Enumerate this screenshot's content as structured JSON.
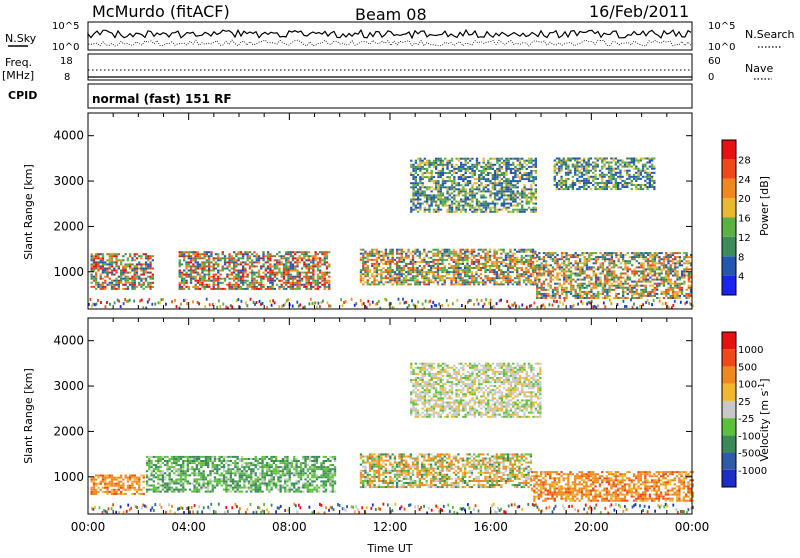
{
  "header": {
    "station": "McMurdo (fitACF)",
    "beam": "Beam 08",
    "date": "16/Feb/2011"
  },
  "strip": {
    "nsky_label": "N.Sky",
    "nsky_ticks": [
      "10^5",
      "10^0"
    ],
    "nsearch_label": "N.Search",
    "nsearch_ticks": [
      "10^5",
      "10^0"
    ],
    "freq_label": "Freq.",
    "freq_unit": "[MHz]",
    "freq_ticks": [
      "18",
      "8"
    ],
    "nave_label": "Nave",
    "nave_ticks": [
      "60",
      "0"
    ],
    "cpid_label": "CPID",
    "cpid_text": "normal (fast) 151 RF"
  },
  "chart_data": [
    {
      "type": "heatmap",
      "title": "",
      "ylabel": "Slant Range [km]",
      "xlabel": "",
      "ylim": [
        180,
        4500
      ],
      "yticks": [
        1000,
        2000,
        3000,
        4000
      ],
      "xlim": [
        0,
        24
      ],
      "colorbar": {
        "label": "Power [dB]",
        "ticks": [
          "28",
          "24",
          "20",
          "16",
          "12",
          "8",
          "4"
        ],
        "colors": [
          "#1a24f0",
          "#2456b0",
          "#3d8b5a",
          "#5ab040",
          "#e8b830",
          "#f08820",
          "#f04818",
          "#e81010"
        ]
      },
      "regions": [
        {
          "t0": 0.1,
          "t1": 2.6,
          "r0": 600,
          "r1": 1400,
          "level": "high"
        },
        {
          "t0": 3.6,
          "t1": 9.6,
          "r0": 600,
          "r1": 1450,
          "level": "high"
        },
        {
          "t0": 10.8,
          "t1": 17.8,
          "r0": 700,
          "r1": 1500,
          "level": "mid"
        },
        {
          "t0": 17.8,
          "t1": 24,
          "r0": 400,
          "r1": 1400,
          "level": "mid"
        },
        {
          "t0": 12.8,
          "t1": 17.8,
          "r0": 2300,
          "r1": 3500,
          "level": "low"
        },
        {
          "t0": 18.5,
          "t1": 22.5,
          "r0": 2800,
          "r1": 3500,
          "level": "low"
        }
      ]
    },
    {
      "type": "heatmap",
      "title": "",
      "ylabel": "Slant Range [km]",
      "xlabel": "Time UT",
      "ylim": [
        180,
        4500
      ],
      "yticks": [
        1000,
        2000,
        3000,
        4000
      ],
      "xlim": [
        0,
        24
      ],
      "xticks": [
        "00:00",
        "04:00",
        "08:00",
        "12:00",
        "16:00",
        "20:00",
        "00:00"
      ],
      "colorbar": {
        "label": "Velocity [m s",
        "label_sup": "-1",
        "label_end": "]",
        "ticks": [
          "1000",
          "500",
          "100",
          "25",
          "-25",
          "-100",
          "-500",
          "-1000"
        ],
        "colors": [
          "#1e2cc8",
          "#2e5aa8",
          "#3a8a58",
          "#5cc03c",
          "#c8c8c8",
          "#f0b830",
          "#f08820",
          "#f04818",
          "#e81010"
        ]
      },
      "regions": [
        {
          "t0": 0.1,
          "t1": 2.2,
          "r0": 600,
          "r1": 1050,
          "level": "orange"
        },
        {
          "t0": 2.3,
          "t1": 9.8,
          "r0": 650,
          "r1": 1450,
          "level": "green"
        },
        {
          "t0": 10.8,
          "t1": 17.6,
          "r0": 750,
          "r1": 1500,
          "level": "mix"
        },
        {
          "t0": 17.6,
          "t1": 24,
          "r0": 450,
          "r1": 1100,
          "level": "orange"
        },
        {
          "t0": 12.8,
          "t1": 18,
          "r0": 2300,
          "r1": 3500,
          "level": "grey"
        }
      ]
    }
  ]
}
